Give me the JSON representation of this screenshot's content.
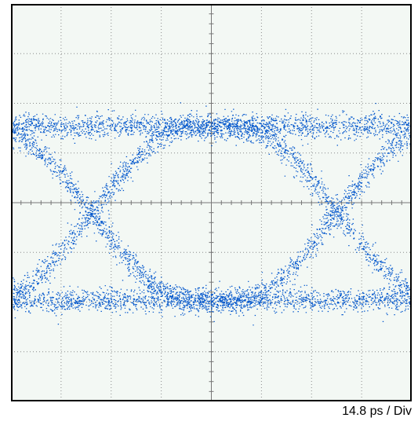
{
  "chart_data": {
    "type": "eye-diagram",
    "timebase_label": "14.8 ps / Div",
    "grid": true,
    "divisions": {
      "horizontal": 8,
      "vertical": 8
    },
    "trace_color": "#0055cc",
    "background_color": "#f3f8f4",
    "levels": {
      "high": 1.55,
      "low": -1.95
    },
    "unit_interval_div": 4.9,
    "crossing_times_div": [
      -2.4,
      2.5
    ],
    "crossing_level_div": 0.0,
    "samples_per_trace": 900
  }
}
